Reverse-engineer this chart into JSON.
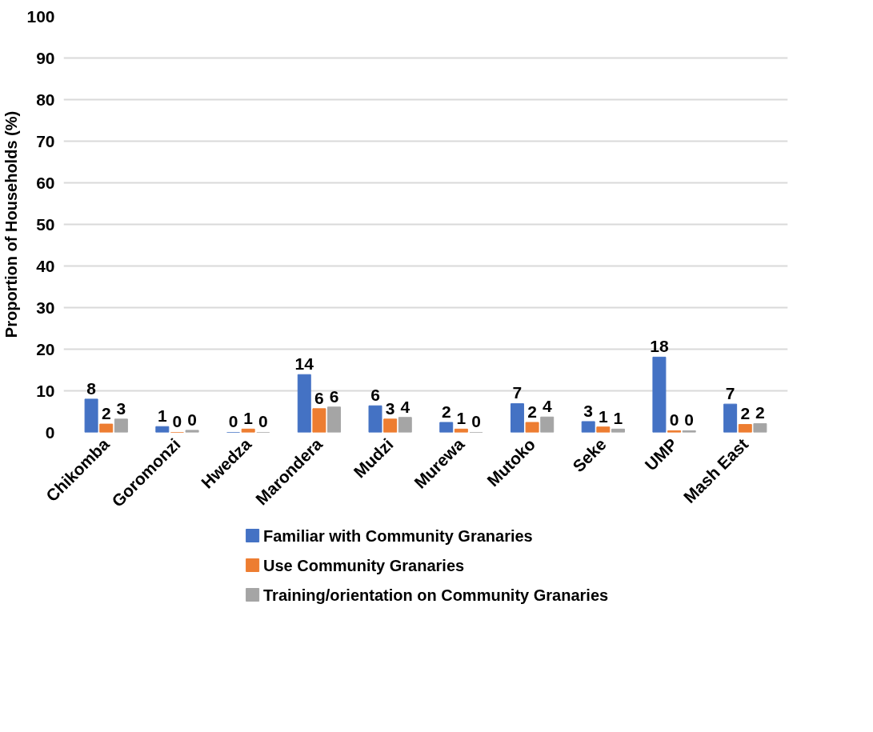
{
  "chart_data": {
    "type": "bar",
    "ylabel": "Proportion of Households (%)",
    "categories": [
      "Chikomba",
      "Goromonzi",
      "Hwedza",
      "Marondera",
      "Mudzi",
      "Murewa",
      "Mutoko",
      "Seke",
      "UMP",
      "Mash East"
    ],
    "series": [
      {
        "name": "Familiar with Community Granaries",
        "color": "#4472c4",
        "values": [
          8.0,
          1.4,
          0,
          13.9,
          6.4,
          2.4,
          6.9,
          2.6,
          18.1,
          6.8
        ],
        "value_labels": [
          "8",
          "1",
          "0",
          "14",
          "6",
          "2",
          "7",
          "3",
          "18",
          "7"
        ]
      },
      {
        "name": "Use  Community Granaries",
        "color": "#ed7d31",
        "values": [
          2.0,
          0,
          0.8,
          5.7,
          3.2,
          0.8,
          2.4,
          1.3,
          0.4,
          1.9
        ],
        "value_labels": [
          "2",
          "0",
          "1",
          "6",
          "3",
          "1",
          "2",
          "1",
          "0",
          "2"
        ]
      },
      {
        "name": "Training/orientation on  Community Granaries",
        "color": "#a5a5a5",
        "values": [
          3.2,
          0.5,
          0,
          6.1,
          3.6,
          0,
          3.7,
          0.8,
          0.4,
          2.1
        ],
        "value_labels": [
          "3",
          "0",
          "0",
          "6",
          "4",
          "0",
          "4",
          "1",
          "0",
          "2"
        ]
      }
    ],
    "ylim": [
      0,
      100
    ],
    "yticks": [
      0,
      10,
      20,
      30,
      40,
      50,
      60,
      70,
      80,
      90,
      100
    ],
    "grid": "y",
    "legend": "bottom"
  }
}
